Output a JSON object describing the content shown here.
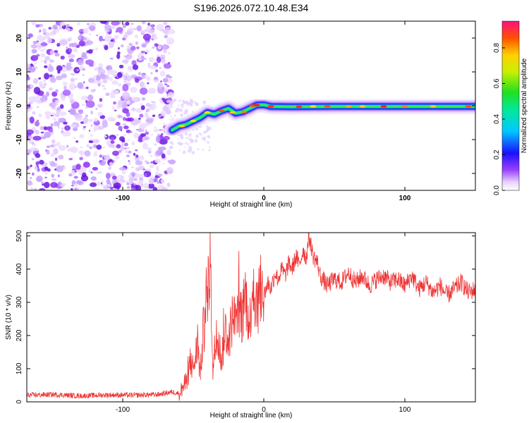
{
  "title": "S196.2026.072.10.48.E34",
  "chart_data": [
    {
      "type": "heatmap",
      "xlabel": "Height of straight line (km)",
      "ylabel": "Frequency (Hz)",
      "xlim": [
        -168,
        150
      ],
      "ylim": [
        -25,
        25
      ],
      "xticks": [
        -100,
        0,
        100
      ],
      "yticks": [
        -20,
        -10,
        0,
        10,
        20
      ],
      "noise_region_x": [
        -168,
        -65
      ],
      "ridge": [
        {
          "x": -65,
          "f": -7.2
        },
        {
          "x": -60,
          "f": -6.0
        },
        {
          "x": -55,
          "f": -5.5
        },
        {
          "x": -50,
          "f": -4.5
        },
        {
          "x": -45,
          "f": -3.5
        },
        {
          "x": -40,
          "f": -2.0
        },
        {
          "x": -35,
          "f": -2.5
        },
        {
          "x": -30,
          "f": -1.5
        },
        {
          "x": -25,
          "f": -0.8
        },
        {
          "x": -20,
          "f": -2.2
        },
        {
          "x": -15,
          "f": -1.8
        },
        {
          "x": -10,
          "f": -0.8
        },
        {
          "x": -5,
          "f": 0.2
        },
        {
          "x": 0,
          "f": 0.3
        },
        {
          "x": 5,
          "f": -0.2
        },
        {
          "x": 20,
          "f": -0.3
        },
        {
          "x": 50,
          "f": -0.2
        },
        {
          "x": 100,
          "f": -0.2
        },
        {
          "x": 150,
          "f": -0.2
        }
      ],
      "colorbar": {
        "label": "Normalized spectral amplitude",
        "range": [
          0.0,
          0.95
        ],
        "ticks": [
          0.0,
          0.2,
          0.4,
          0.6,
          0.8
        ],
        "tick_labels": [
          "0.0",
          "0.2",
          "0.4",
          "0.6",
          "0.8"
        ]
      }
    },
    {
      "type": "line",
      "xlabel": "Height of straight line (km)",
      "ylabel": "SNR (10 * v/v)",
      "xlim": [
        -168,
        150
      ],
      "ylim": [
        0,
        510
      ],
      "xticks": [
        -100,
        0,
        100
      ],
      "yticks": [
        0,
        100,
        200,
        300,
        400,
        500
      ],
      "series": [
        {
          "name": "SNR",
          "color": "#ee3333",
          "x": [
            -168,
            -150,
            -130,
            -110,
            -90,
            -75,
            -65,
            -60,
            -55,
            -52,
            -50,
            -47,
            -45,
            -43,
            -40,
            -38,
            -36,
            -35,
            -33,
            -30,
            -27,
            -25,
            -22,
            -20,
            -18,
            -15,
            -13,
            -10,
            -8,
            -5,
            -3,
            0,
            3,
            5,
            8,
            10,
            13,
            15,
            18,
            20,
            23,
            25,
            28,
            30,
            32,
            35,
            38,
            40,
            45,
            50,
            55,
            60,
            65,
            70,
            75,
            80,
            85,
            90,
            95,
            100,
            105,
            110,
            115,
            120,
            125,
            130,
            135,
            140,
            145,
            150
          ],
          "values": [
            20,
            22,
            18,
            21,
            20,
            22,
            30,
            25,
            60,
            120,
            100,
            170,
            80,
            210,
            300,
            420,
            90,
            150,
            200,
            130,
            220,
            180,
            260,
            240,
            300,
            250,
            330,
            220,
            380,
            280,
            340,
            320,
            360,
            340,
            390,
            370,
            400,
            380,
            420,
            400,
            440,
            410,
            460,
            430,
            500,
            440,
            420,
            380,
            350,
            370,
            360,
            390,
            360,
            380,
            350,
            370,
            380,
            360,
            370,
            350,
            380,
            340,
            360,
            330,
            350,
            320,
            340,
            360,
            330,
            340
          ]
        }
      ]
    }
  ]
}
